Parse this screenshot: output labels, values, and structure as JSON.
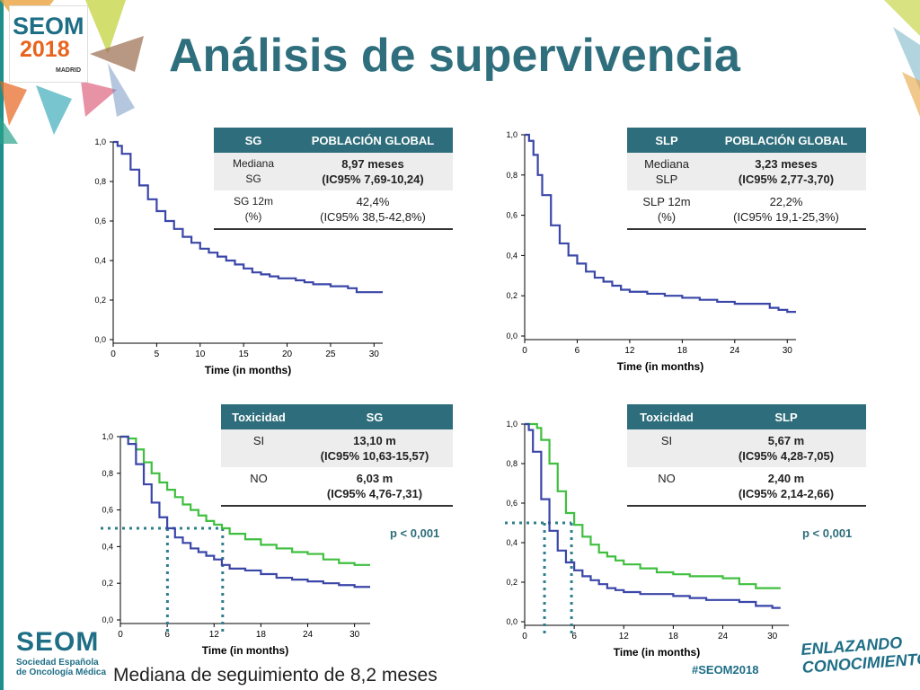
{
  "slide": {
    "title": "Análisis de supervivencia",
    "footer_note": "Mediana de seguimiento de 8,2 meses",
    "logo": {
      "line1": "SEOM",
      "line2": "2018",
      "line3": "MADRID"
    },
    "footer_logo": {
      "big": "SEOM",
      "line1": "Sociedad Española",
      "line2": "de Oncología Médica"
    },
    "hashtag": "#SEOM2018",
    "tagline": [
      "ENLAZANDO",
      "CONOCIMIENTO"
    ],
    "colors": {
      "title": "#2f6f7d",
      "header": "#2e6d7b",
      "blue_curve": "#3a46a8",
      "green_curve": "#3fbf3f",
      "median_lines": "#2e7d8c"
    }
  },
  "tables": {
    "sg_global": {
      "headers": [
        "SG",
        "POBLACIÓN GLOBAL"
      ],
      "rows": [
        {
          "label": [
            "Mediana",
            "SG"
          ],
          "value": [
            "8,97 meses",
            "(IC95% 7,69-10,24)"
          ]
        },
        {
          "label": [
            "SG  12m",
            "(%)"
          ],
          "value": [
            "42,4%",
            "(IC95% 38,5-42,8%)"
          ]
        }
      ]
    },
    "slp_global": {
      "headers": [
        "SLP",
        "POBLACIÓN GLOBAL"
      ],
      "rows": [
        {
          "label": [
            "Mediana",
            "SLP"
          ],
          "value": [
            "3,23 meses",
            "(IC95% 2,77-3,70)"
          ]
        },
        {
          "label": [
            "SLP  12m",
            "(%)"
          ],
          "value": [
            "22,2%",
            "(IC95% 19,1-25,3%)"
          ]
        }
      ]
    },
    "sg_tox": {
      "headers": [
        "Toxicidad",
        "SG"
      ],
      "rows": [
        {
          "label": [
            "SI"
          ],
          "value": [
            "13,10 m",
            "(IC95% 10,63-15,57)"
          ]
        },
        {
          "label": [
            "NO"
          ],
          "value": [
            "6,03 m",
            "(IC95% 4,76-7,31)"
          ]
        }
      ],
      "p_value": "p < 0,001"
    },
    "slp_tox": {
      "headers": [
        "Toxicidad",
        "SLP"
      ],
      "rows": [
        {
          "label": [
            "SI"
          ],
          "value": [
            "5,67 m",
            "(IC95% 4,28-7,05)"
          ]
        },
        {
          "label": [
            "NO"
          ],
          "value": [
            "2,40 m",
            "(IC95% 2,14-2,66)"
          ]
        }
      ],
      "p_value": "p < 0,001"
    }
  },
  "chart_data": [
    {
      "type": "line",
      "xlabel": "Time (in months)",
      "xticks": [
        "0",
        "5",
        "10",
        "15",
        "20",
        "25",
        "30"
      ],
      "yticks": [
        "0,0",
        "0,2",
        "0,4",
        "0,6",
        "0,8",
        "1,0"
      ],
      "xlim": [
        0,
        31
      ],
      "ylim": [
        0,
        1
      ],
      "series": [
        {
          "color": "#3a46a8",
          "x": [
            0,
            0.5,
            1,
            2,
            3,
            4,
            5,
            6,
            7,
            8,
            9,
            10,
            11,
            12,
            13,
            14,
            15,
            16,
            17,
            18,
            19,
            20,
            21,
            22,
            23,
            24,
            25,
            26,
            27,
            28,
            29,
            30,
            31
          ],
          "y": [
            1.0,
            0.98,
            0.94,
            0.86,
            0.78,
            0.71,
            0.65,
            0.6,
            0.56,
            0.52,
            0.49,
            0.46,
            0.44,
            0.42,
            0.4,
            0.38,
            0.36,
            0.34,
            0.33,
            0.32,
            0.31,
            0.31,
            0.3,
            0.29,
            0.28,
            0.28,
            0.27,
            0.27,
            0.26,
            0.24,
            0.24,
            0.24,
            0.24
          ]
        }
      ]
    },
    {
      "type": "line",
      "xlabel": "Time (in months)",
      "xticks": [
        "0",
        "6",
        "12",
        "18",
        "24",
        "30"
      ],
      "yticks": [
        "0,0",
        "0,2",
        "0,4",
        "0,6",
        "0,8",
        "1,0"
      ],
      "xlim": [
        0,
        31
      ],
      "ylim": [
        0,
        1
      ],
      "series": [
        {
          "color": "#3a46a8",
          "x": [
            0,
            0.5,
            1,
            1.5,
            2,
            3,
            4,
            5,
            6,
            7,
            8,
            9,
            10,
            11,
            12,
            14,
            16,
            18,
            20,
            22,
            24,
            26,
            28,
            29,
            30,
            31
          ],
          "y": [
            1.0,
            0.97,
            0.9,
            0.8,
            0.7,
            0.55,
            0.46,
            0.4,
            0.36,
            0.32,
            0.29,
            0.27,
            0.25,
            0.23,
            0.22,
            0.21,
            0.2,
            0.19,
            0.18,
            0.17,
            0.16,
            0.16,
            0.14,
            0.13,
            0.12,
            0.12
          ]
        }
      ]
    },
    {
      "type": "line",
      "xlabel": "Time (in months)",
      "xticks": [
        "0",
        "6",
        "12",
        "18",
        "24",
        "30"
      ],
      "yticks": [
        "0,0",
        "0,2",
        "0,4",
        "0,6",
        "0,8",
        "1,0"
      ],
      "xlim": [
        0,
        32
      ],
      "ylim": [
        0,
        1
      ],
      "medians_x": [
        6.03,
        13.1
      ],
      "median_y": 0.5,
      "series": [
        {
          "color": "#3fbf3f",
          "x": [
            0,
            1,
            2,
            3,
            4,
            5,
            6,
            7,
            8,
            9,
            10,
            11,
            12,
            13,
            14,
            16,
            18,
            20,
            22,
            24,
            26,
            28,
            30,
            32
          ],
          "y": [
            1.0,
            0.99,
            0.93,
            0.86,
            0.8,
            0.75,
            0.71,
            0.67,
            0.63,
            0.6,
            0.57,
            0.54,
            0.52,
            0.5,
            0.47,
            0.44,
            0.41,
            0.39,
            0.37,
            0.36,
            0.33,
            0.31,
            0.3,
            0.3
          ]
        },
        {
          "color": "#3a46a8",
          "x": [
            0,
            1,
            2,
            3,
            4,
            5,
            6,
            7,
            8,
            9,
            10,
            11,
            12,
            13,
            14,
            16,
            18,
            20,
            22,
            24,
            26,
            28,
            30,
            32
          ],
          "y": [
            1.0,
            0.96,
            0.85,
            0.74,
            0.64,
            0.56,
            0.5,
            0.45,
            0.42,
            0.39,
            0.37,
            0.35,
            0.33,
            0.3,
            0.28,
            0.27,
            0.25,
            0.23,
            0.22,
            0.21,
            0.2,
            0.19,
            0.18,
            0.18
          ]
        }
      ]
    },
    {
      "type": "line",
      "xlabel": "Time (in months)",
      "xticks": [
        "0",
        "6",
        "12",
        "18",
        "24",
        "30"
      ],
      "yticks": [
        "0,0",
        "0,2",
        "0,4",
        "0,6",
        "0,8",
        "1,0"
      ],
      "xlim": [
        0,
        32
      ],
      "ylim": [
        0,
        1
      ],
      "medians_x": [
        2.4,
        5.67
      ],
      "median_y": 0.5,
      "series": [
        {
          "color": "#3fbf3f",
          "x": [
            0,
            1,
            1.5,
            2,
            3,
            4,
            5,
            6,
            7,
            8,
            9,
            10,
            11,
            12,
            14,
            16,
            18,
            20,
            22,
            24,
            26,
            28,
            30,
            31
          ],
          "y": [
            1.0,
            1.0,
            0.98,
            0.92,
            0.8,
            0.66,
            0.55,
            0.49,
            0.43,
            0.39,
            0.35,
            0.33,
            0.31,
            0.29,
            0.27,
            0.25,
            0.24,
            0.23,
            0.23,
            0.22,
            0.19,
            0.17,
            0.17,
            0.17
          ]
        },
        {
          "color": "#3a46a8",
          "x": [
            0,
            0.5,
            1,
            2,
            3,
            4,
            5,
            6,
            7,
            8,
            9,
            10,
            11,
            12,
            14,
            16,
            18,
            20,
            22,
            24,
            26,
            28,
            30,
            31
          ],
          "y": [
            1.0,
            0.97,
            0.86,
            0.62,
            0.46,
            0.36,
            0.3,
            0.26,
            0.23,
            0.21,
            0.19,
            0.17,
            0.16,
            0.15,
            0.14,
            0.14,
            0.13,
            0.12,
            0.11,
            0.11,
            0.1,
            0.08,
            0.07,
            0.07
          ]
        }
      ]
    }
  ]
}
